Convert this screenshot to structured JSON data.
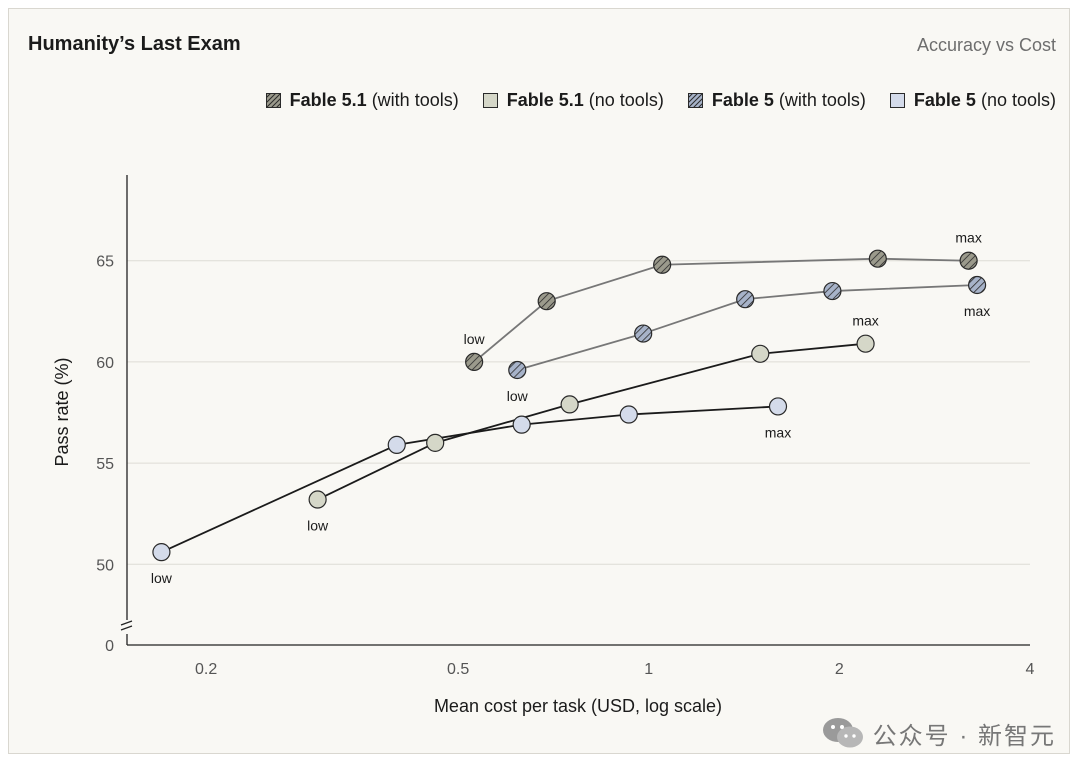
{
  "header": {
    "title": "Humanity’s Last Exam",
    "subtitle": "Accuracy vs Cost"
  },
  "colors": {
    "fable51_tools": "#9b9a8c",
    "fable51_notools": "#d5d7c8",
    "fable5_tools": "#a7b3c9",
    "fable5_notools": "#d4dbea",
    "grid": "#dedcd5",
    "axis": "#222222"
  },
  "legend": [
    {
      "name": "Fable 5.1",
      "qualifier": "(with tools)",
      "key": "s1"
    },
    {
      "name": "Fable 5.1",
      "qualifier": "(no tools)",
      "key": "s2"
    },
    {
      "name": "Fable 5",
      "qualifier": "(with tools)",
      "key": "s3"
    },
    {
      "name": "Fable 5",
      "qualifier": "(no tools)",
      "key": "s4"
    }
  ],
  "chart_data": {
    "type": "line",
    "title": "Humanity’s Last Exam",
    "subtitle": "Accuracy vs Cost",
    "xlabel": "Mean cost per task (USD, log scale)",
    "ylabel": "Pass rate (%)",
    "x_scale": "log",
    "xlim": [
      0.15,
      4
    ],
    "ylim": [
      47,
      68
    ],
    "y_axis_break": true,
    "x_ticks": [
      0.2,
      0.5,
      1,
      2,
      4
    ],
    "x_tick_labels": [
      "0.2",
      "0.5",
      "1",
      "2",
      "4"
    ],
    "y_ticks": [
      50,
      55,
      60,
      65
    ],
    "y_tick_labels": [
      "50",
      "55",
      "60",
      "65"
    ],
    "y_zero_label": "0",
    "grid": true,
    "legend_position": "top",
    "series": [
      {
        "key": "s1",
        "name": "Fable 5.1 (with tools)",
        "hatched": true,
        "line_color": "#777777",
        "x": [
          0.53,
          0.69,
          1.05,
          2.3,
          3.2
        ],
        "y": [
          60.0,
          63.0,
          64.8,
          65.1,
          65.0
        ],
        "annotations": [
          {
            "index": 0,
            "text": "low",
            "pos": "above"
          },
          {
            "index": 4,
            "text": "max",
            "pos": "above"
          }
        ]
      },
      {
        "key": "s2",
        "name": "Fable 5.1 (no tools)",
        "hatched": false,
        "line_color": "#1b1b1b",
        "x": [
          0.3,
          0.46,
          0.75,
          1.5,
          2.2
        ],
        "y": [
          53.2,
          56.0,
          57.9,
          60.4,
          60.9
        ],
        "annotations": [
          {
            "index": 0,
            "text": "low",
            "pos": "below"
          },
          {
            "index": 4,
            "text": "max",
            "pos": "above"
          }
        ]
      },
      {
        "key": "s3",
        "name": "Fable 5 (with tools)",
        "hatched": true,
        "line_color": "#777777",
        "x": [
          0.62,
          0.98,
          1.42,
          1.95,
          3.3
        ],
        "y": [
          59.6,
          61.4,
          63.1,
          63.5,
          63.8
        ],
        "annotations": [
          {
            "index": 0,
            "text": "low",
            "pos": "below"
          },
          {
            "index": 4,
            "text": "max",
            "pos": "below"
          }
        ]
      },
      {
        "key": "s4",
        "name": "Fable 5 (no tools)",
        "hatched": false,
        "line_color": "#1b1b1b",
        "x": [
          0.17,
          0.4,
          0.63,
          0.93,
          1.6
        ],
        "y": [
          50.6,
          55.9,
          56.9,
          57.4,
          57.8
        ],
        "annotations": [
          {
            "index": 0,
            "text": "low",
            "pos": "below"
          },
          {
            "index": 4,
            "text": "max",
            "pos": "below"
          }
        ]
      }
    ]
  },
  "watermark": {
    "text": "公众号 · 新智元",
    "icon": "wechat-icon"
  }
}
